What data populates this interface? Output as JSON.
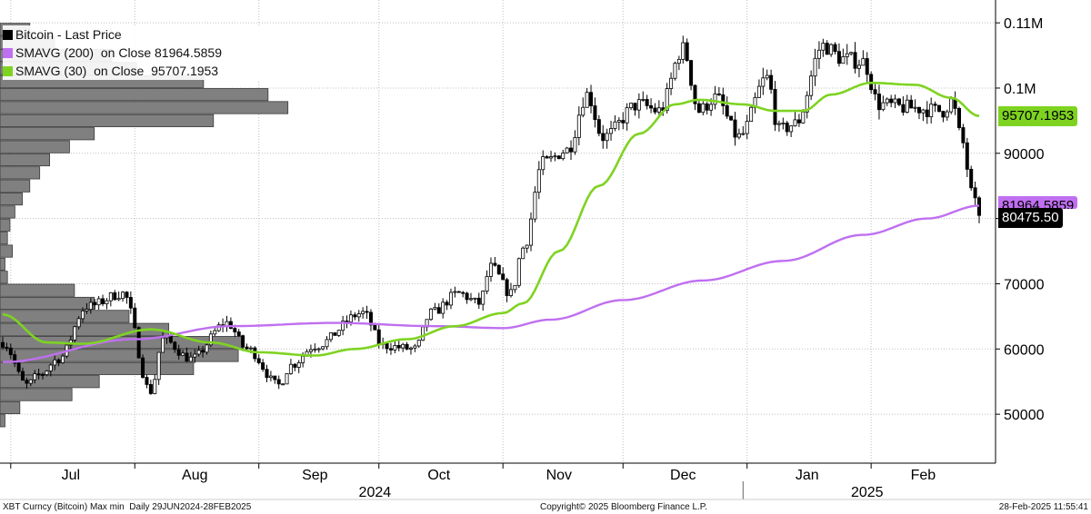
{
  "chart_data": {
    "type": "candlestick",
    "title": "",
    "legend": {
      "placement": "top-left",
      "entries": [
        {
          "label": "Bitcoin - Last Price",
          "color": "#000000"
        },
        {
          "label": "SMAVG (200)  on Close 81964.5859",
          "color": "#bf6ff0"
        },
        {
          "label": "SMAVG (30)  on Close  95707.1953",
          "color": "#7ed321"
        }
      ]
    },
    "x_axis": {
      "range": [
        "2024-06-29",
        "2025-02-28"
      ],
      "month_labels": [
        {
          "label": "Jul",
          "date": "2024-07-16"
        },
        {
          "label": "Aug",
          "date": "2024-08-16"
        },
        {
          "label": "Sep",
          "date": "2024-09-15"
        },
        {
          "label": "Oct",
          "date": "2024-10-16"
        },
        {
          "label": "Nov",
          "date": "2024-11-15"
        },
        {
          "label": "Dec",
          "date": "2024-12-16"
        },
        {
          "label": "Jan",
          "date": "2025-01-16"
        },
        {
          "label": "Feb",
          "date": "2025-02-14"
        }
      ],
      "year_labels": [
        {
          "label": "2024",
          "date": "2024-09-30"
        },
        {
          "label": "2025",
          "date": "2025-01-31"
        }
      ],
      "year_divider": "2024-12-31"
    },
    "y_axis": {
      "range": [
        42500,
        113500
      ],
      "ticks": [
        {
          "value": 50000,
          "label": "50000"
        },
        {
          "value": 60000,
          "label": "60000"
        },
        {
          "value": 70000,
          "label": "70000"
        },
        {
          "value": 80000,
          "label": "80000"
        },
        {
          "value": 90000,
          "label": "90000"
        },
        {
          "value": 100000,
          "label": "0.1M"
        },
        {
          "value": 110000,
          "label": "0.11M"
        }
      ],
      "grid": true
    },
    "price_anchors": [
      [
        "2024-06-29",
        61000
      ],
      [
        "2024-07-05",
        54500
      ],
      [
        "2024-07-08",
        56000
      ],
      [
        "2024-07-13",
        58500
      ],
      [
        "2024-07-20",
        66500
      ],
      [
        "2024-07-29",
        68500
      ],
      [
        "2024-08-05",
        53500
      ],
      [
        "2024-08-08",
        61500
      ],
      [
        "2024-08-15",
        58500
      ],
      [
        "2024-08-24",
        64000
      ],
      [
        "2024-08-29",
        60000
      ],
      [
        "2024-09-06",
        54500
      ],
      [
        "2024-09-09",
        57500
      ],
      [
        "2024-09-15",
        60500
      ],
      [
        "2024-09-27",
        65500
      ],
      [
        "2024-10-02",
        60500
      ],
      [
        "2024-10-10",
        60000
      ],
      [
        "2024-10-14",
        65500
      ],
      [
        "2024-10-21",
        68500
      ],
      [
        "2024-10-26",
        67000
      ],
      [
        "2024-10-29",
        72500
      ],
      [
        "2024-11-03",
        68500
      ],
      [
        "2024-11-06",
        75500
      ],
      [
        "2024-11-11",
        88500
      ],
      [
        "2024-11-17",
        90500
      ],
      [
        "2024-11-22",
        99000
      ],
      [
        "2024-11-26",
        92500
      ],
      [
        "2024-12-05",
        97500
      ],
      [
        "2024-12-10",
        96500
      ],
      [
        "2024-12-16",
        106000
      ],
      [
        "2024-12-20",
        96500
      ],
      [
        "2024-12-24",
        98500
      ],
      [
        "2024-12-30",
        92500
      ],
      [
        "2025-01-06",
        101500
      ],
      [
        "2025-01-09",
        93500
      ],
      [
        "2025-01-13",
        94500
      ],
      [
        "2025-01-20",
        106500
      ],
      [
        "2025-01-25",
        104500
      ],
      [
        "2025-01-30",
        104000
      ],
      [
        "2025-02-03",
        97500
      ],
      [
        "2025-02-10",
        97000
      ],
      [
        "2025-02-19",
        96500
      ],
      [
        "2025-02-21",
        98000
      ],
      [
        "2025-02-24",
        91500
      ],
      [
        "2025-02-26",
        84000
      ],
      [
        "2025-02-28",
        80475.5
      ]
    ],
    "sma30_anchors": [
      [
        "2024-06-29",
        65300
      ],
      [
        "2024-07-10",
        61000
      ],
      [
        "2024-07-19",
        60800
      ],
      [
        "2024-08-05",
        63000
      ],
      [
        "2024-08-20",
        61000
      ],
      [
        "2024-09-01",
        59500
      ],
      [
        "2024-09-15",
        59000
      ],
      [
        "2024-09-25",
        60000
      ],
      [
        "2024-10-08",
        61500
      ],
      [
        "2024-10-20",
        63500
      ],
      [
        "2024-11-01",
        65500
      ],
      [
        "2024-11-06",
        67000
      ],
      [
        "2024-11-15",
        75000
      ],
      [
        "2024-11-25",
        85000
      ],
      [
        "2024-12-05",
        93000
      ],
      [
        "2024-12-14",
        97500
      ],
      [
        "2024-12-20",
        98200
      ],
      [
        "2024-12-31",
        97500
      ],
      [
        "2025-01-08",
        96500
      ],
      [
        "2025-01-15",
        96500
      ],
      [
        "2025-01-22",
        99000
      ],
      [
        "2025-02-01",
        100800
      ],
      [
        "2025-02-12",
        100500
      ],
      [
        "2025-02-21",
        98500
      ],
      [
        "2025-02-28",
        95707.1953
      ]
    ],
    "sma200_anchors": [
      [
        "2024-06-29",
        58000
      ],
      [
        "2024-08-01",
        61500
      ],
      [
        "2024-08-25",
        63500
      ],
      [
        "2024-09-20",
        64000
      ],
      [
        "2024-10-15",
        63500
      ],
      [
        "2024-11-01",
        63200
      ],
      [
        "2024-11-13",
        64500
      ],
      [
        "2024-12-01",
        67500
      ],
      [
        "2024-12-21",
        70500
      ],
      [
        "2025-01-10",
        73500
      ],
      [
        "2025-01-30",
        77500
      ],
      [
        "2025-02-15",
        80000
      ],
      [
        "2025-02-28",
        81964.5859
      ]
    ],
    "volume_at_price": {
      "bucket_size": 2000,
      "buckets": [
        [
          49000,
          2
        ],
        [
          51000,
          8
        ],
        [
          53000,
          29
        ],
        [
          55000,
          40
        ],
        [
          57000,
          78
        ],
        [
          59000,
          96
        ],
        [
          61000,
          98
        ],
        [
          63000,
          68
        ],
        [
          65000,
          52
        ],
        [
          67000,
          38
        ],
        [
          69000,
          30
        ],
        [
          71000,
          3
        ],
        [
          73000,
          2
        ],
        [
          75000,
          5
        ],
        [
          77000,
          3
        ],
        [
          79000,
          4
        ],
        [
          81000,
          6
        ],
        [
          83000,
          9
        ],
        [
          85000,
          12
        ],
        [
          87000,
          16
        ],
        [
          89000,
          20
        ],
        [
          91000,
          28
        ],
        [
          93000,
          38
        ],
        [
          95000,
          86
        ],
        [
          97000,
          116
        ],
        [
          99000,
          108
        ],
        [
          101000,
          82
        ],
        [
          103000,
          55
        ],
        [
          105000,
          45
        ],
        [
          107000,
          22
        ],
        [
          109000,
          12
        ]
      ]
    },
    "last_values": {
      "sma30": "95707.1953",
      "sma200": "81964.5859",
      "price": "80475.50"
    }
  },
  "footer": {
    "left": "XBT Curncy (Bitcoin) Max min  Daily 29JUN2024-28FEB2025",
    "center": "Copyright© 2025 Bloomberg Finance L.P.",
    "right": "28-Feb-2025 11:55:41"
  },
  "colors": {
    "sma30": "#7ed321",
    "sma200": "#bf6ff0",
    "histogram": "#808080",
    "price": "#000000",
    "grid": "#bfbfbf"
  }
}
